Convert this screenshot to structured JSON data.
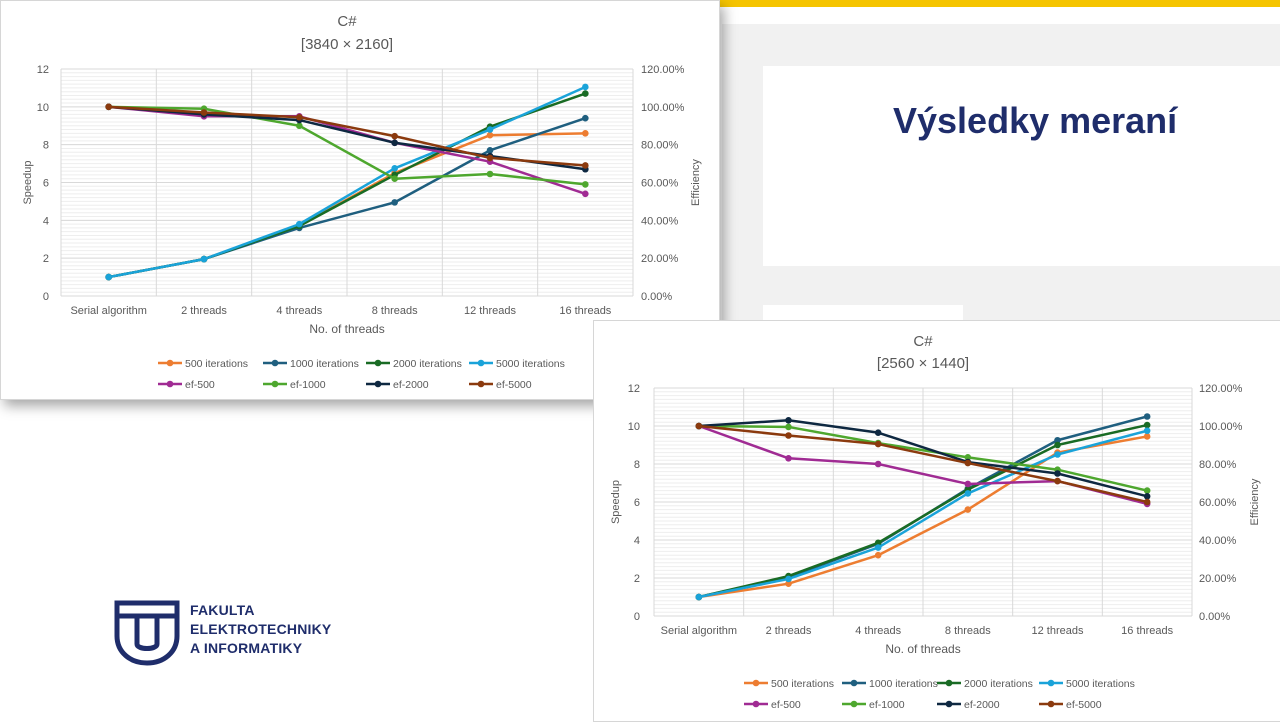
{
  "slide": {
    "title": "Výsledky meraní",
    "accent_color": "#f5c400",
    "logo_lines": [
      "FAKULTA",
      "ELEKTROTECHNIKY",
      "A INFORMATIKY"
    ],
    "logo_color": "#1f2d6b"
  },
  "chart_data": [
    {
      "type": "line",
      "title": "C#",
      "subtitle": "[3840 × 2160]",
      "xlabel": "No. of threads",
      "ylabel": "Speedup",
      "y2label": "Efficiency",
      "ylim": [
        0,
        12
      ],
      "yticks": [
        "0",
        "2",
        "4",
        "6",
        "8",
        "10",
        "12"
      ],
      "y2lim": [
        0,
        120
      ],
      "y2ticks": [
        "0.00%",
        "20.00%",
        "40.00%",
        "60.00%",
        "80.00%",
        "100.00%",
        "120.00%"
      ],
      "grid": true,
      "legend_position": "bottom",
      "categories": [
        "Serial algorithm",
        "2 threads",
        "4 threads",
        "8 threads",
        "12 threads",
        "16 threads"
      ],
      "series": [
        {
          "name": "500 iterations",
          "axis": "left",
          "color": "#ed7d31",
          "values": [
            1,
            1.95,
            3.7,
            6.5,
            8.5,
            8.6
          ]
        },
        {
          "name": "1000 iterations",
          "axis": "left",
          "color": "#1f5f7f",
          "values": [
            1,
            1.95,
            3.6,
            4.95,
            7.7,
            9.4
          ]
        },
        {
          "name": "2000 iterations",
          "axis": "left",
          "color": "#196b24",
          "values": [
            1,
            1.95,
            3.7,
            6.4,
            8.95,
            10.7
          ]
        },
        {
          "name": "5000 iterations",
          "axis": "left",
          "color": "#1aa3d9",
          "values": [
            1,
            1.95,
            3.8,
            6.75,
            8.8,
            11.05
          ]
        },
        {
          "name": "ef-500",
          "axis": "right",
          "color": "#a02b93",
          "values": [
            100,
            95,
            95,
            81,
            71,
            54
          ]
        },
        {
          "name": "ef-1000",
          "axis": "right",
          "color": "#4ea72e",
          "values": [
            100,
            99,
            90,
            62,
            64.5,
            59
          ]
        },
        {
          "name": "ef-2000",
          "axis": "right",
          "color": "#0e2841",
          "values": [
            100,
            96,
            93,
            81,
            74,
            67
          ]
        },
        {
          "name": "ef-5000",
          "axis": "right",
          "color": "#8b3a0e",
          "values": [
            100,
            97,
            94.5,
            84.5,
            73,
            69
          ]
        }
      ]
    },
    {
      "type": "line",
      "title": "C#",
      "subtitle": "[2560 × 1440]",
      "xlabel": "No. of threads",
      "ylabel": "Speedup",
      "y2label": "Efficiency",
      "ylim": [
        0,
        12
      ],
      "yticks": [
        "0",
        "2",
        "4",
        "6",
        "8",
        "10",
        "12"
      ],
      "y2lim": [
        0,
        120
      ],
      "y2ticks": [
        "0.00%",
        "20.00%",
        "40.00%",
        "60.00%",
        "80.00%",
        "100.00%",
        "120.00%"
      ],
      "grid": true,
      "legend_position": "bottom",
      "categories": [
        "Serial algorithm",
        "2 threads",
        "4 threads",
        "8 threads",
        "12 threads",
        "16 threads"
      ],
      "series": [
        {
          "name": "500 iterations",
          "axis": "left",
          "color": "#ed7d31",
          "values": [
            1,
            1.7,
            3.2,
            5.6,
            8.6,
            9.45
          ]
        },
        {
          "name": "1000 iterations",
          "axis": "left",
          "color": "#1f5f7f",
          "values": [
            1,
            2.05,
            3.8,
            6.7,
            9.25,
            10.5
          ]
        },
        {
          "name": "2000 iterations",
          "axis": "left",
          "color": "#196b24",
          "values": [
            1,
            2.1,
            3.85,
            6.65,
            9.0,
            10.05
          ]
        },
        {
          "name": "5000 iterations",
          "axis": "left",
          "color": "#1aa3d9",
          "values": [
            1,
            1.95,
            3.6,
            6.45,
            8.5,
            9.75
          ]
        },
        {
          "name": "ef-500",
          "axis": "right",
          "color": "#a02b93",
          "values": [
            100,
            83,
            80,
            69.5,
            71,
            59
          ]
        },
        {
          "name": "ef-1000",
          "axis": "right",
          "color": "#4ea72e",
          "values": [
            100,
            99.5,
            91,
            83.5,
            77,
            66
          ]
        },
        {
          "name": "ef-2000",
          "axis": "right",
          "color": "#0e2841",
          "values": [
            100,
            103,
            96.5,
            81,
            75,
            63
          ]
        },
        {
          "name": "ef-5000",
          "axis": "right",
          "color": "#8b3a0e",
          "values": [
            100,
            95,
            90.5,
            80.5,
            71,
            60
          ]
        }
      ]
    }
  ]
}
